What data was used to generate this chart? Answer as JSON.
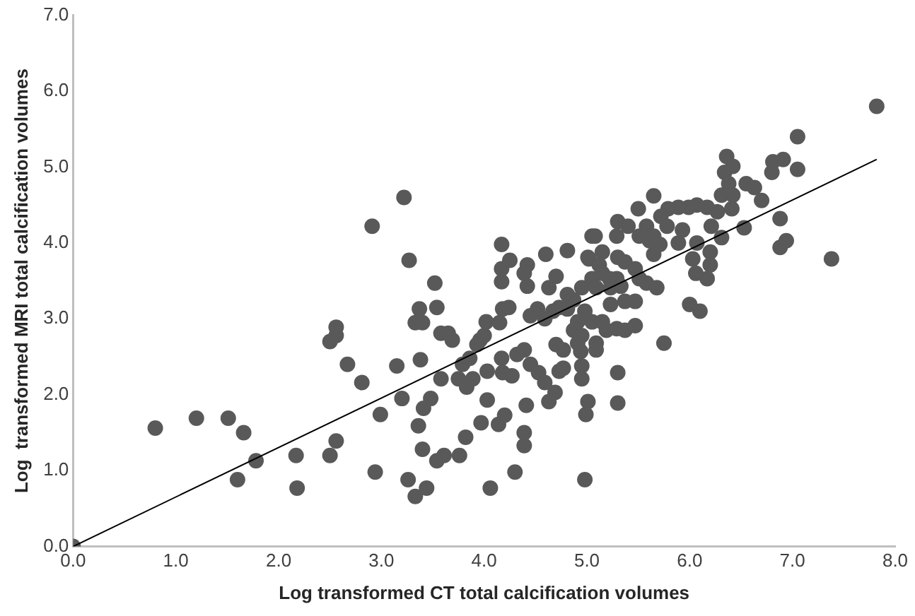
{
  "chart_data": {
    "type": "scatter",
    "xlabel": "Log transformed CT total calcification volumes",
    "ylabel": "Log  transformed MRI total calcification volumes",
    "xlim": [
      0,
      8
    ],
    "ylim": [
      0,
      7
    ],
    "xticks": [
      {
        "value": 0,
        "label": "0.0"
      },
      {
        "value": 1,
        "label": "1.0"
      },
      {
        "value": 2,
        "label": "2.0"
      },
      {
        "value": 3,
        "label": "3.0"
      },
      {
        "value": 4,
        "label": "4.0"
      },
      {
        "value": 5,
        "label": "5.0"
      },
      {
        "value": 6,
        "label": "6.0"
      },
      {
        "value": 7,
        "label": "7.0"
      },
      {
        "value": 8,
        "label": "8.0"
      }
    ],
    "yticks": [
      {
        "value": 0,
        "label": "0.0"
      },
      {
        "value": 1,
        "label": "1.0"
      },
      {
        "value": 2,
        "label": "2.0"
      },
      {
        "value": 3,
        "label": "3.0"
      },
      {
        "value": 4,
        "label": "4.0"
      },
      {
        "value": 5,
        "label": "5.0"
      },
      {
        "value": 6,
        "label": "6.0"
      },
      {
        "value": 7,
        "label": "7.0"
      }
    ],
    "grid": false,
    "legend": false,
    "series": [
      {
        "color": "#595959",
        "marker": "circle",
        "x": [
          0,
          0.8,
          1.2,
          1.51,
          1.66,
          1.78,
          1.6,
          2.17,
          2.18,
          2.5,
          2.56,
          2.5,
          2.56,
          2.56,
          2.67,
          2.81,
          3.22,
          2.91,
          3.27,
          3.52,
          3.15,
          3.38,
          3.37,
          3.33,
          3.4,
          3.54,
          3.58,
          3.65,
          3.69,
          3.2,
          2.99,
          3.48,
          3.41,
          3.36,
          3.58,
          2.94,
          3.26,
          3.33,
          3.44,
          3.4,
          3.54,
          3.61,
          3.76,
          3.82,
          3.75,
          3.83,
          3.79,
          3.89,
          3.86,
          3.96,
          4.0,
          3.93,
          4.02,
          4.03,
          4.03,
          3.97,
          4.14,
          4.2,
          4.06,
          4.3,
          4.39,
          4.39,
          4.41,
          4.17,
          4.17,
          4.17,
          4.25,
          4.42,
          4.39,
          4.42,
          4.6,
          4.81,
          4.7,
          4.63,
          4.18,
          4.24,
          4.15,
          4.17,
          4.18,
          4.27,
          4.32,
          4.39,
          4.45,
          4.53,
          4.59,
          4.69,
          4.63,
          4.73,
          4.45,
          4.52,
          4.59,
          4.67,
          4.73,
          4.81,
          4.7,
          4.77,
          4.95,
          4.95,
          5.01,
          4.99,
          4.98,
          5.01,
          5.05,
          4.95,
          7.82,
          7.05,
          7.05,
          6.91,
          6.81,
          6.8,
          7.38,
          6.88,
          6.94,
          6.88,
          6.53,
          6.36,
          6.34,
          6.42,
          6.38,
          6.55,
          6.63,
          6.7,
          6.31,
          6.42,
          6.41,
          6.27,
          6.17,
          6.07,
          5.99,
          6.21,
          6.31,
          6.2,
          6.2,
          6.17,
          6.03,
          6.06,
          6.07,
          6.0,
          6.1,
          5.75,
          5.89,
          5.79,
          5.72,
          5.78,
          5.65,
          5.5,
          5.58,
          5.65,
          5.71,
          5.65,
          5.89,
          5.93,
          5.3,
          5.4,
          5.29,
          5.51,
          5.61,
          5.08,
          5.02,
          5.15,
          5.12,
          5.3,
          5.37,
          5.47,
          5.51,
          5.58,
          5.68,
          5.05,
          5.15,
          5.22,
          5.29,
          5.09,
          5.23,
          5.33,
          5.23,
          5.37,
          5.47,
          4.87,
          4.81,
          4.98,
          4.91,
          5.05,
          5.15,
          5.19,
          4.87,
          4.95,
          4.91,
          5.09,
          5.29,
          5.37,
          5.47,
          5.09,
          4.94,
          4.77,
          5.3,
          5.3
        ],
        "values": [
          0,
          1.56,
          1.69,
          1.69,
          1.5,
          1.13,
          0.88,
          1.2,
          0.77,
          1.2,
          1.39,
          2.7,
          2.78,
          2.89,
          2.4,
          2.16,
          4.6,
          4.22,
          3.77,
          3.47,
          2.38,
          2.46,
          3.13,
          2.95,
          2.95,
          3.15,
          2.81,
          2.81,
          2.72,
          1.95,
          1.74,
          1.95,
          1.82,
          1.59,
          2.21,
          0.98,
          0.88,
          0.66,
          0.77,
          1.28,
          1.13,
          1.2,
          1.2,
          1.44,
          2.21,
          2.1,
          2.4,
          2.21,
          2.48,
          2.72,
          2.78,
          2.66,
          2.96,
          2.31,
          1.93,
          1.63,
          1.61,
          1.73,
          0.77,
          0.98,
          1.5,
          1.33,
          1.86,
          3.98,
          3.66,
          3.49,
          3.77,
          3.71,
          3.6,
          3.43,
          3.85,
          3.9,
          3.56,
          3.41,
          3.13,
          3.15,
          2.95,
          2.48,
          2.29,
          2.25,
          2.53,
          2.59,
          2.4,
          2.29,
          2.16,
          2.03,
          1.91,
          2.31,
          3.04,
          3.13,
          3.0,
          3.1,
          3.15,
          3.32,
          2.66,
          2.59,
          2.38,
          2.21,
          1.91,
          1.74,
          0.88,
          3.81,
          4.09,
          3.41,
          5.8,
          5.4,
          4.97,
          5.1,
          5.07,
          4.93,
          3.79,
          4.32,
          4.03,
          3.94,
          4.2,
          5.14,
          4.93,
          5.01,
          4.78,
          4.78,
          4.73,
          4.56,
          4.63,
          4.63,
          4.45,
          4.41,
          4.47,
          4.5,
          4.47,
          4.22,
          4.07,
          3.88,
          3.71,
          3.53,
          3.79,
          3.6,
          4.0,
          3.19,
          3.1,
          2.68,
          4.47,
          4.45,
          4.35,
          4.22,
          4.62,
          4.45,
          4.22,
          4.09,
          3.98,
          3.85,
          4.0,
          4.17,
          4.28,
          4.22,
          4.09,
          4.09,
          4.03,
          4.09,
          3.79,
          3.88,
          3.71,
          3.81,
          3.75,
          3.66,
          3.53,
          3.47,
          3.41,
          3.53,
          3.6,
          3.53,
          3.53,
          3.41,
          3.41,
          3.43,
          3.19,
          3.23,
          3.23,
          3.25,
          3.13,
          3.1,
          2.96,
          2.96,
          2.96,
          2.85,
          2.85,
          2.78,
          2.68,
          2.68,
          2.87,
          2.85,
          2.91,
          2.59,
          2.57,
          2.35,
          2.29,
          1.89
        ]
      },
      {
        "type": "line",
        "color": "#000000",
        "marker": "none",
        "line_style": "solid",
        "x": [
          0,
          7.82
        ],
        "values": [
          0,
          5.1
        ]
      }
    ]
  }
}
